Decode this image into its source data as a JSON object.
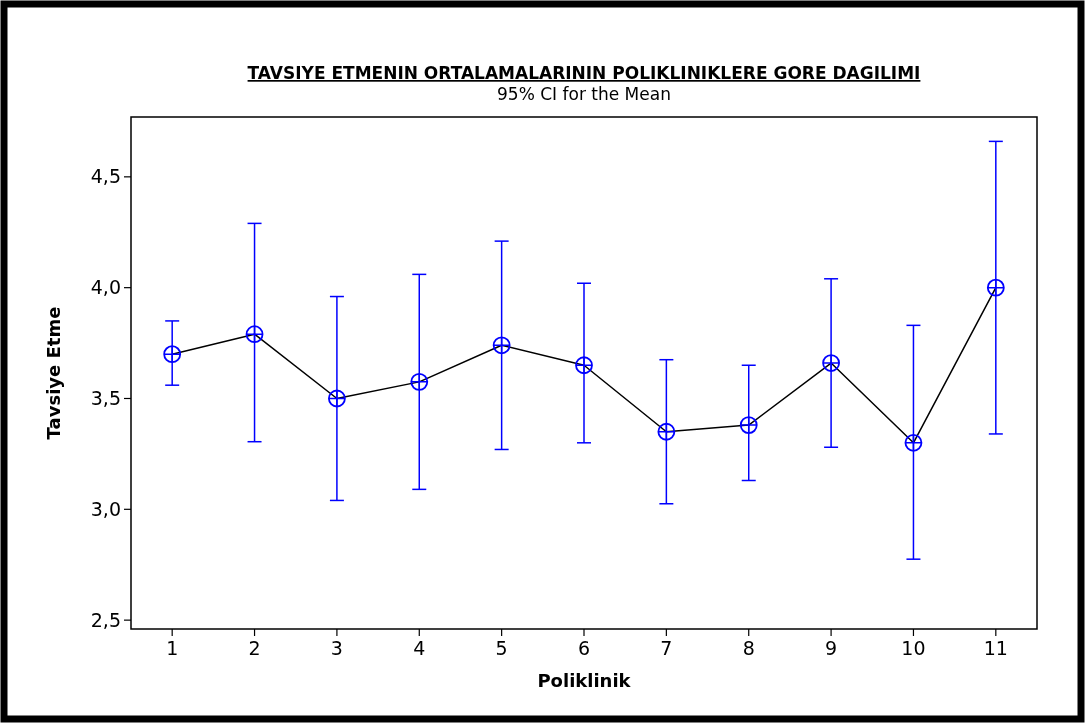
{
  "chart_data": {
    "type": "line",
    "title": "TAVSIYE ETMENIN ORTALAMALARININ POLIKLINIKLERE GORE DAGILIMI",
    "subtitle": "95% CI for the Mean",
    "xlabel": "Poliklinik",
    "ylabel": "Tavsiye Etme",
    "categories": [
      "1",
      "2",
      "3",
      "4",
      "5",
      "6",
      "7",
      "8",
      "9",
      "10",
      "11"
    ],
    "series": [
      {
        "color": "#0000ff",
        "values": [
          3.7,
          3.79,
          3.5,
          3.575,
          3.74,
          3.65,
          3.35,
          3.38,
          3.66,
          3.3,
          4.0
        ],
        "errors": [
          [
            3.56,
            3.85
          ],
          [
            3.305,
            4.29
          ],
          [
            3.04,
            3.96
          ],
          [
            3.09,
            4.06
          ],
          [
            3.27,
            4.21
          ],
          [
            3.3,
            4.02
          ],
          [
            3.025,
            3.675
          ],
          [
            3.13,
            3.65
          ],
          [
            3.28,
            4.04
          ],
          [
            2.775,
            3.83
          ],
          [
            3.34,
            4.66
          ]
        ]
      }
    ],
    "ylim": [
      2.46,
      4.77
    ],
    "yticks": [
      {
        "value": 2.5,
        "label": "2,5"
      },
      {
        "value": 3.0,
        "label": "3,0"
      },
      {
        "value": 3.5,
        "label": "3,5"
      },
      {
        "value": 4.0,
        "label": "4,0"
      },
      {
        "value": 4.5,
        "label": "4,5"
      }
    ],
    "marker": "circle",
    "line_style": "solid"
  }
}
